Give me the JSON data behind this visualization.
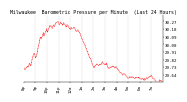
{
  "title": "Milwaukee  Barometric Pressure per Minute  (Last 24 Hours)",
  "ylabel_values": [
    "30.27",
    "30.18",
    "30.09",
    "30.00",
    "29.91",
    "29.82",
    "29.73",
    "29.64"
  ],
  "ylim": [
    29.55,
    30.35
  ],
  "background_color": "#ffffff",
  "plot_bg_color": "#ffffff",
  "line_color": "#ff0000",
  "grid_color": "#bbbbbb",
  "num_points": 200,
  "pressure_data": [
    29.72,
    29.71,
    29.7,
    29.71,
    29.73,
    29.74,
    29.73,
    29.75,
    29.77,
    29.76,
    29.75,
    29.78,
    29.82,
    29.85,
    29.88,
    29.9,
    29.87,
    29.84,
    29.86,
    29.89,
    29.93,
    29.97,
    30.01,
    30.05,
    30.08,
    30.07,
    30.09,
    30.11,
    30.13,
    30.1,
    30.12,
    30.14,
    30.16,
    30.18,
    30.15,
    30.17,
    30.19,
    30.21,
    30.2,
    30.22,
    30.2,
    30.19,
    30.21,
    30.23,
    30.22,
    30.24,
    30.25,
    30.24,
    30.26,
    30.27,
    30.25,
    30.23,
    30.24,
    30.26,
    30.25,
    30.24,
    30.23,
    30.25,
    30.24,
    30.23,
    30.22,
    30.21,
    30.23,
    30.22,
    30.21,
    30.2,
    30.19,
    30.18,
    30.2,
    30.19,
    30.18,
    30.19,
    30.2,
    30.18,
    30.17,
    30.16,
    30.15,
    30.16,
    30.17,
    30.16,
    30.14,
    30.12,
    30.1,
    30.08,
    30.06,
    30.04,
    30.02,
    30.0,
    29.98,
    29.96,
    29.94,
    29.92,
    29.9,
    29.88,
    29.86,
    29.84,
    29.82,
    29.8,
    29.78,
    29.76,
    29.74,
    29.72,
    29.74,
    29.76,
    29.75,
    29.77,
    29.76,
    29.75,
    29.74,
    29.76,
    29.77,
    29.76,
    29.78,
    29.79,
    29.78,
    29.77,
    29.76,
    29.77,
    29.76,
    29.77,
    29.75,
    29.73,
    29.71,
    29.72,
    29.73,
    29.72,
    29.73,
    29.74,
    29.73,
    29.74,
    29.73,
    29.72,
    29.74,
    29.73,
    29.72,
    29.71,
    29.7,
    29.69,
    29.68,
    29.67,
    29.66,
    29.65,
    29.64,
    29.65,
    29.66,
    29.65,
    29.64,
    29.63,
    29.62,
    29.61,
    29.6,
    29.61,
    29.62,
    29.61,
    29.6,
    29.61,
    29.62,
    29.61,
    29.6,
    29.59,
    29.6,
    29.61,
    29.6,
    29.61,
    29.6,
    29.61,
    29.6,
    29.59,
    29.6,
    29.59,
    29.6,
    29.59,
    29.58,
    29.59,
    29.58,
    29.59,
    29.6,
    29.59,
    29.6,
    29.61,
    29.62,
    29.61,
    29.62,
    29.63,
    29.62,
    29.61,
    29.6,
    29.59,
    29.58,
    29.57,
    29.56,
    29.55,
    29.54,
    29.55,
    29.56,
    29.57,
    29.58,
    29.57,
    29.56,
    29.57
  ],
  "xtick_labels": [
    "8p",
    "9p",
    "10p",
    "11p",
    "12a",
    "1a",
    "2a",
    "3a",
    "4a",
    "5a",
    "6a",
    "7a"
  ],
  "title_fontsize": 3.5,
  "tick_fontsize": 3.0
}
